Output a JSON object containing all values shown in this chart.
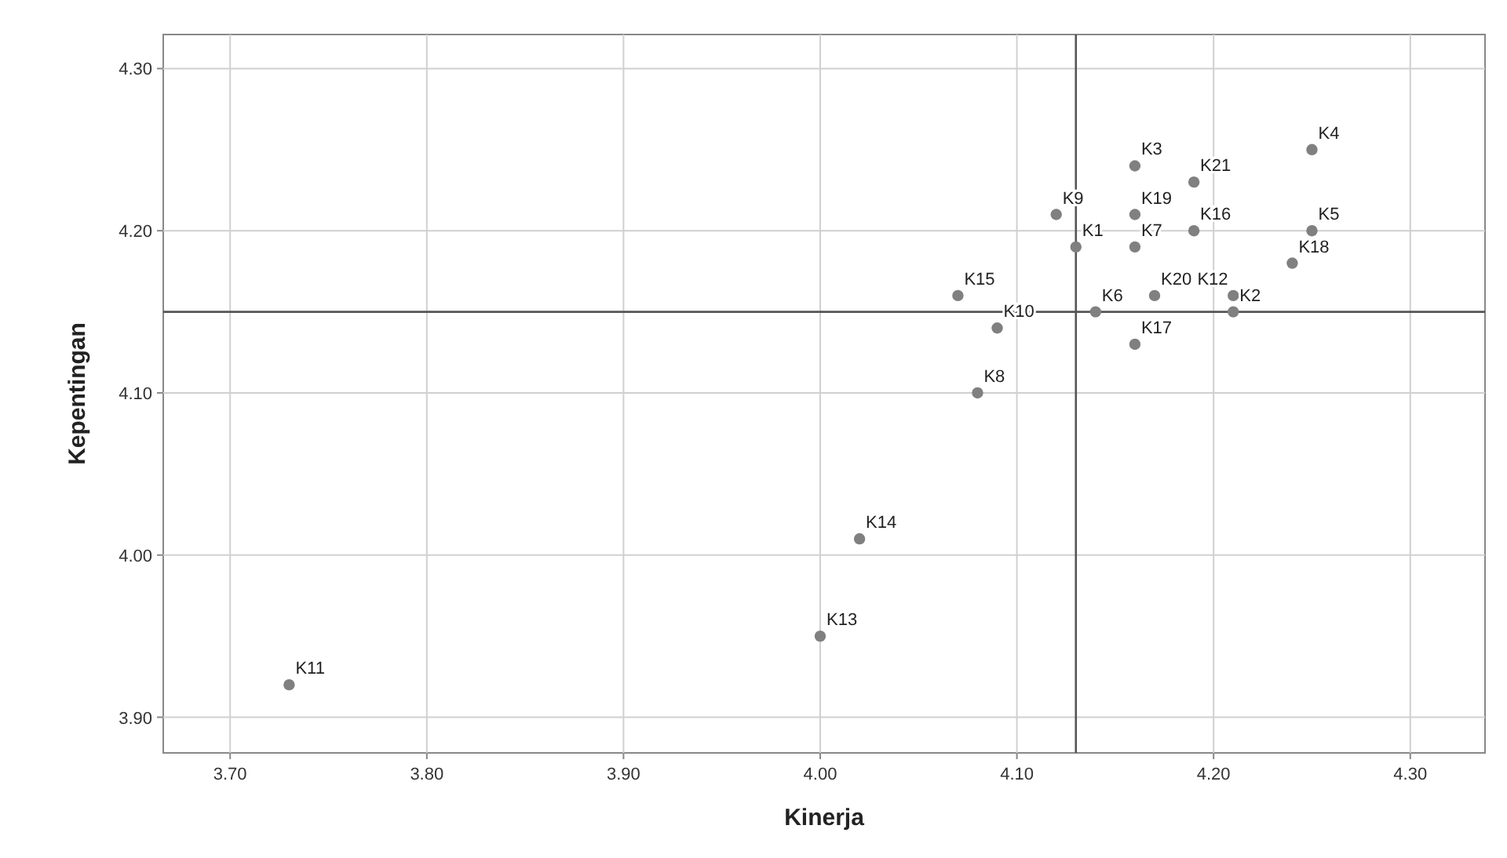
{
  "chart_data": {
    "type": "scatter",
    "xlabel": "Kinerja",
    "ylabel": "Kepentingan",
    "xlim": [
      3.666,
      4.338
    ],
    "ylim": [
      3.878,
      4.321
    ],
    "xticks": [
      {
        "value": 3.7,
        "label": "3.70"
      },
      {
        "value": 3.8,
        "label": "3.80"
      },
      {
        "value": 3.9,
        "label": "3.90"
      },
      {
        "value": 4.0,
        "label": "4.00"
      },
      {
        "value": 4.1,
        "label": "4.10"
      },
      {
        "value": 4.2,
        "label": "4.20"
      },
      {
        "value": 4.3,
        "label": "4.30"
      }
    ],
    "yticks": [
      {
        "value": 3.9,
        "label": "3.90"
      },
      {
        "value": 4.0,
        "label": "4.00"
      },
      {
        "value": 4.1,
        "label": "4.10"
      },
      {
        "value": 4.2,
        "label": "4.20"
      },
      {
        "value": 4.3,
        "label": "4.30"
      }
    ],
    "grid": true,
    "marker": "circle",
    "series": [
      {
        "color": "#808080",
        "x": [
          4.13,
          4.21,
          4.16,
          4.25,
          4.25,
          4.14,
          4.16,
          4.08,
          4.12,
          4.09,
          3.73,
          4.21,
          4.0,
          4.02,
          4.07,
          4.19,
          4.16,
          4.24,
          4.16,
          4.17,
          4.19
        ],
        "values": [
          4.19,
          4.15,
          4.24,
          4.25,
          4.2,
          4.15,
          4.19,
          4.1,
          4.21,
          4.14,
          3.92,
          4.16,
          3.95,
          4.01,
          4.16,
          4.2,
          4.13,
          4.18,
          4.21,
          4.16,
          4.23
        ]
      }
    ],
    "ref_lines": [
      {
        "axis": "x",
        "value": 4.13,
        "color": "#555555"
      },
      {
        "axis": "y",
        "value": 4.15,
        "color": "#555555"
      }
    ],
    "annotations": [
      {
        "text": "K1",
        "x": 4.13,
        "y": 4.19
      },
      {
        "text": "K2",
        "x": 4.21,
        "y": 4.15
      },
      {
        "text": "K3",
        "x": 4.16,
        "y": 4.24
      },
      {
        "text": "K4",
        "x": 4.25,
        "y": 4.25
      },
      {
        "text": "K5",
        "x": 4.25,
        "y": 4.2
      },
      {
        "text": "K6",
        "x": 4.14,
        "y": 4.15
      },
      {
        "text": "K7",
        "x": 4.16,
        "y": 4.19
      },
      {
        "text": "K8",
        "x": 4.08,
        "y": 4.1
      },
      {
        "text": "K9",
        "x": 4.12,
        "y": 4.21
      },
      {
        "text": "K10",
        "x": 4.09,
        "y": 4.14
      },
      {
        "text": "K11",
        "x": 3.73,
        "y": 3.92
      },
      {
        "text": "K12",
        "x": 4.21,
        "y": 4.16
      },
      {
        "text": "K13",
        "x": 4.0,
        "y": 3.95
      },
      {
        "text": "K14",
        "x": 4.02,
        "y": 4.01
      },
      {
        "text": "K15",
        "x": 4.07,
        "y": 4.16
      },
      {
        "text": "K16",
        "x": 4.19,
        "y": 4.2
      },
      {
        "text": "K17",
        "x": 4.16,
        "y": 4.13
      },
      {
        "text": "K18",
        "x": 4.24,
        "y": 4.18
      },
      {
        "text": "K19",
        "x": 4.16,
        "y": 4.21
      },
      {
        "text": "K20",
        "x": 4.17,
        "y": 4.16
      },
      {
        "text": "K21",
        "x": 4.19,
        "y": 4.23
      }
    ]
  }
}
